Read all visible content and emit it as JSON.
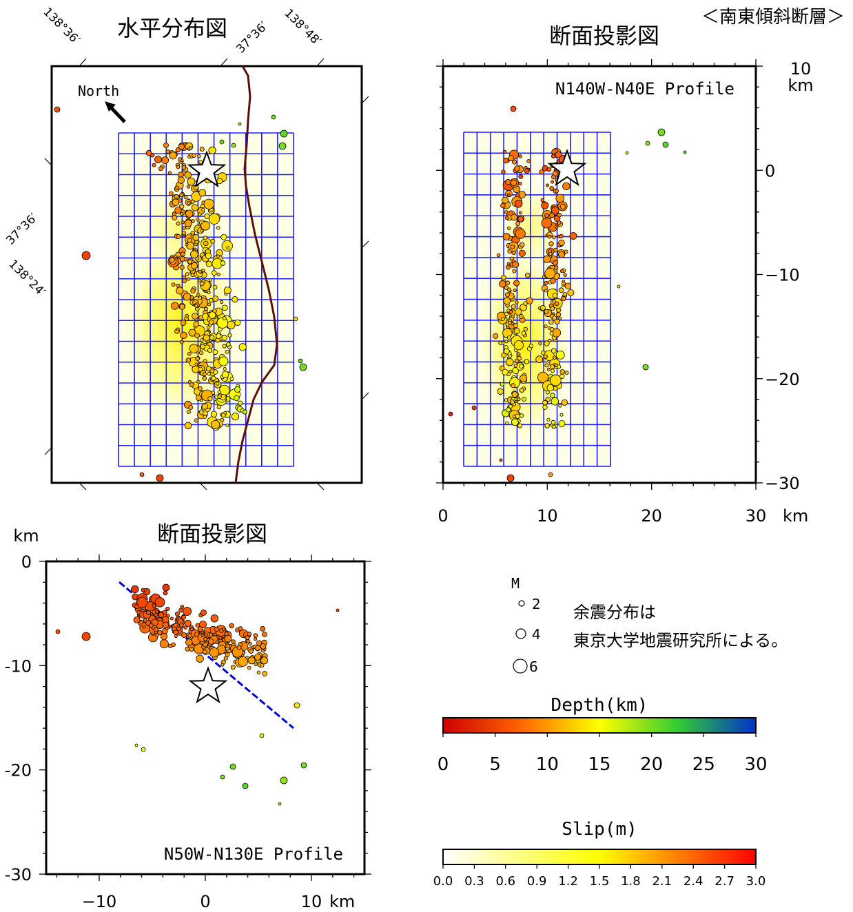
{
  "tag": "＜南東傾斜断層＞",
  "map": {
    "title": "水平分布図",
    "north_label": "North",
    "corner_labels": {
      "top_left_lon": "138°36′",
      "top_mid_lat": "37°36′",
      "top_right_lon": "138°48′",
      "left_lat": "37°36′",
      "left_lon": "138°24′"
    }
  },
  "profile_ns": {
    "title": "断面投影図",
    "profile_label": "N140W-N40E Profile",
    "y_unit": "km",
    "x_unit": "km"
  },
  "profile_ew": {
    "title": "断面投影図",
    "profile_label": "N50W-N130E Profile",
    "y_unit": "km",
    "x_unit": "km"
  },
  "magnitude_legend": {
    "title": "M",
    "items": [
      "2",
      "4",
      "6"
    ]
  },
  "note": {
    "line1": "余震分布は",
    "line2": "東京大学地震研究所による。"
  },
  "depth_bar": {
    "title": "Depth(km)",
    "ticks": [
      "0",
      "5",
      "10",
      "15",
      "20",
      "25",
      "30"
    ],
    "colors": [
      "#cc0000",
      "#ff6600",
      "#ffff00",
      "#33cc33",
      "#0033cc"
    ]
  },
  "slip_bar": {
    "title": "Slip(m)",
    "ticks": [
      "0.0",
      "0.3",
      "0.6",
      "0.9",
      "1.2",
      "1.5",
      "1.8",
      "2.1",
      "2.4",
      "2.7",
      "3.0"
    ],
    "colors": [
      "#ffffff",
      "#ffff00",
      "#ff0000"
    ]
  },
  "chart_data": [
    {
      "type": "scatter",
      "panel": "map",
      "title": "水平分布図",
      "x_ticks": [],
      "y_ticks": [],
      "grid": false
    },
    {
      "type": "scatter",
      "panel": "profile_ns",
      "title": "断面投影図",
      "xlim": [
        0,
        30
      ],
      "ylim": [
        -30,
        10
      ],
      "x_ticks": [
        "0",
        "10",
        "20",
        "30"
      ],
      "y_ticks": [
        "10",
        "0",
        "−10",
        "−20",
        "−30"
      ],
      "grid": false
    },
    {
      "type": "scatter",
      "panel": "profile_ew",
      "title": "断面投影図",
      "xlim": [
        -15,
        15
      ],
      "ylim": [
        -30,
        0
      ],
      "x_ticks": [
        "−10",
        "0",
        "10"
      ],
      "y_ticks": [
        "0",
        "-10",
        "-20",
        "-30"
      ],
      "grid": false
    }
  ]
}
